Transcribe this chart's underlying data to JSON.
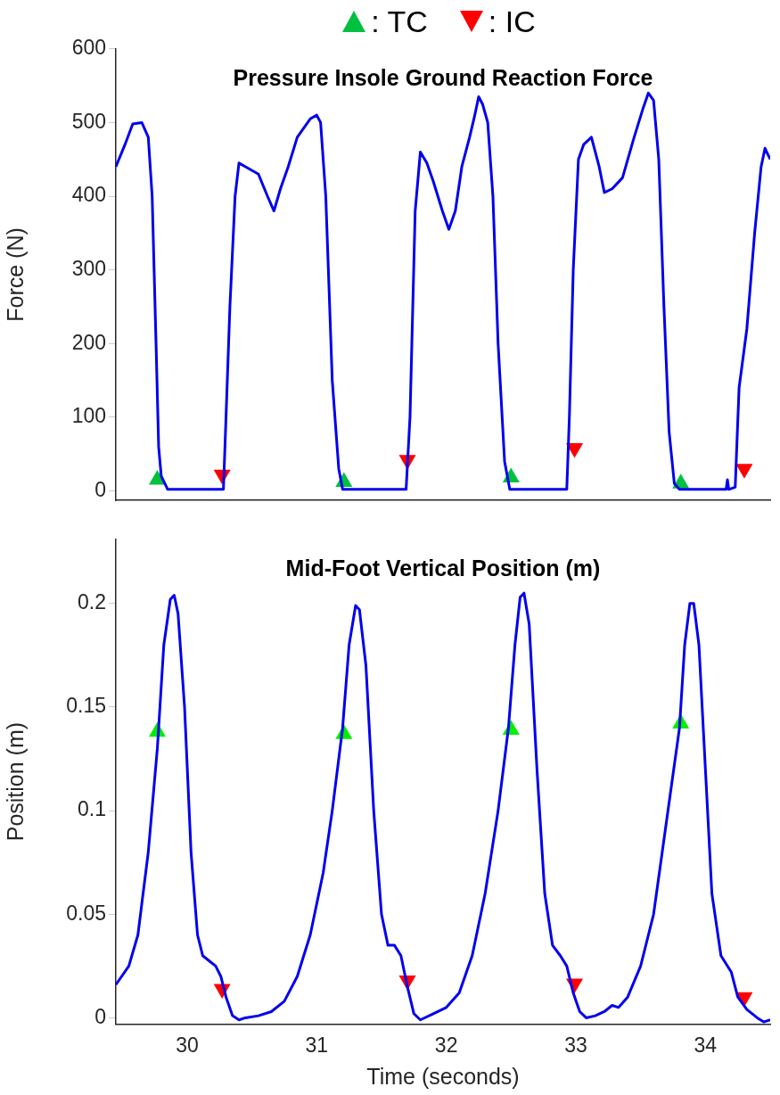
{
  "chart_data": [
    {
      "type": "line",
      "title": "Pressure Insole Ground Reaction Force",
      "ylabel": "Force (N)",
      "xlim": [
        29.45,
        34.5
      ],
      "xticks": [
        30,
        31,
        32,
        33,
        34
      ],
      "ylim": [
        -13,
        600
      ],
      "yticks": [
        0,
        100,
        200,
        300,
        400,
        500,
        600
      ],
      "tick_labels": "y",
      "grid": false,
      "legend": "top",
      "series": [
        {
          "color": "#0000ee",
          "marker": "none",
          "x": [
            29.45,
            29.52,
            29.58,
            29.65,
            29.7,
            29.73,
            29.76,
            29.78,
            29.8,
            29.85,
            30.28,
            30.3,
            30.33,
            30.37,
            30.4,
            30.45,
            30.55,
            30.62,
            30.67,
            30.72,
            30.78,
            30.85,
            30.95,
            31.0,
            31.03,
            31.07,
            31.12,
            31.17,
            31.2,
            31.69,
            31.72,
            31.76,
            31.8,
            31.85,
            31.9,
            31.97,
            32.02,
            32.07,
            32.12,
            32.18,
            32.22,
            32.25,
            32.28,
            32.32,
            32.36,
            32.4,
            32.45,
            32.49,
            32.93,
            32.95,
            32.98,
            33.02,
            33.06,
            33.12,
            33.18,
            33.22,
            33.28,
            33.36,
            33.45,
            33.52,
            33.56,
            33.6,
            33.64,
            33.68,
            33.72,
            33.76,
            33.8,
            34.16,
            34.17,
            34.18,
            34.23,
            34.26,
            34.32,
            34.38,
            34.43,
            34.46,
            34.5
          ],
          "values": [
            440,
            470,
            498,
            500,
            480,
            400,
            200,
            60,
            20,
            2,
            2,
            100,
            250,
            400,
            445,
            440,
            430,
            400,
            380,
            410,
            440,
            480,
            505,
            510,
            500,
            400,
            150,
            30,
            2,
            2,
            100,
            380,
            460,
            445,
            420,
            380,
            355,
            380,
            440,
            480,
            510,
            535,
            525,
            500,
            400,
            200,
            40,
            2,
            2,
            100,
            300,
            450,
            470,
            480,
            440,
            405,
            410,
            425,
            480,
            520,
            540,
            530,
            450,
            250,
            80,
            10,
            2,
            2,
            15,
            2,
            5,
            140,
            220,
            350,
            440,
            465,
            450
          ]
        },
        {
          "type": "scatter",
          "name": ": TC",
          "color": "#00c040",
          "marker": "triangle",
          "x": [
            29.77,
            31.21,
            32.5,
            33.81
          ],
          "values": [
            15,
            12,
            18,
            10
          ]
        },
        {
          "type": "scatter",
          "name": ": IC",
          "color": "#ff0000",
          "marker": "triangle-down",
          "x": [
            30.27,
            31.7,
            32.99,
            34.3
          ],
          "values": [
            22,
            42,
            58,
            30
          ]
        }
      ]
    },
    {
      "type": "line",
      "title": "Mid-Foot Vertical Position (m)",
      "xlabel": "Time (seconds)",
      "ylabel": "Position (m)",
      "xlim": [
        29.45,
        34.5
      ],
      "xticks": [
        30,
        31,
        32,
        33,
        34
      ],
      "ylim": [
        -0.003,
        0.231
      ],
      "yticks": [
        0,
        0.05,
        0.1,
        0.15,
        0.2
      ],
      "grid": false,
      "series": [
        {
          "color": "#0000ee",
          "marker": "none",
          "x": [
            29.45,
            29.55,
            29.62,
            29.7,
            29.77,
            29.82,
            29.87,
            29.9,
            29.93,
            29.98,
            30.03,
            30.08,
            30.12,
            30.18,
            30.22,
            30.26,
            30.3,
            30.35,
            30.4,
            30.45,
            30.55,
            30.65,
            30.75,
            30.85,
            30.95,
            31.05,
            31.12,
            31.2,
            31.25,
            31.3,
            31.33,
            31.38,
            31.44,
            31.5,
            31.55,
            31.6,
            31.65,
            31.7,
            31.75,
            31.8,
            31.9,
            32.0,
            32.1,
            32.2,
            32.3,
            32.4,
            32.48,
            32.53,
            32.57,
            32.6,
            32.64,
            32.7,
            32.76,
            32.82,
            32.88,
            32.93,
            32.98,
            33.03,
            33.08,
            33.15,
            33.22,
            33.28,
            33.33,
            33.4,
            33.5,
            33.6,
            33.7,
            33.8,
            33.84,
            33.88,
            33.91,
            33.95,
            34.0,
            34.05,
            34.12,
            34.2,
            34.25,
            34.32,
            34.4,
            34.45,
            34.5
          ],
          "values": [
            0.016,
            0.025,
            0.04,
            0.08,
            0.13,
            0.18,
            0.202,
            0.204,
            0.195,
            0.15,
            0.08,
            0.04,
            0.03,
            0.027,
            0.025,
            0.02,
            0.01,
            0.001,
            -0.001,
            0,
            0.001,
            0.003,
            0.008,
            0.02,
            0.04,
            0.07,
            0.1,
            0.14,
            0.18,
            0.199,
            0.197,
            0.17,
            0.1,
            0.05,
            0.035,
            0.035,
            0.03,
            0.015,
            0.002,
            -0.001,
            0.002,
            0.005,
            0.012,
            0.03,
            0.06,
            0.1,
            0.14,
            0.18,
            0.203,
            0.205,
            0.19,
            0.12,
            0.06,
            0.035,
            0.03,
            0.025,
            0.012,
            0.003,
            0,
            0.001,
            0.003,
            0.006,
            0.005,
            0.01,
            0.025,
            0.05,
            0.095,
            0.14,
            0.18,
            0.2,
            0.2,
            0.18,
            0.12,
            0.06,
            0.03,
            0.022,
            0.01,
            0.004,
            0,
            -0.002,
            -0.001
          ]
        },
        {
          "type": "scatter",
          "color": "#00ee00",
          "marker": "triangle",
          "x": [
            29.77,
            31.21,
            32.5,
            33.81
          ],
          "values": [
            0.138,
            0.137,
            0.139,
            0.142
          ]
        },
        {
          "type": "scatter",
          "color": "#ff0000",
          "marker": "triangle-down",
          "x": [
            30.27,
            31.7,
            32.99,
            34.3
          ],
          "values": [
            0.014,
            0.018,
            0.0165,
            0.01
          ]
        }
      ]
    }
  ]
}
